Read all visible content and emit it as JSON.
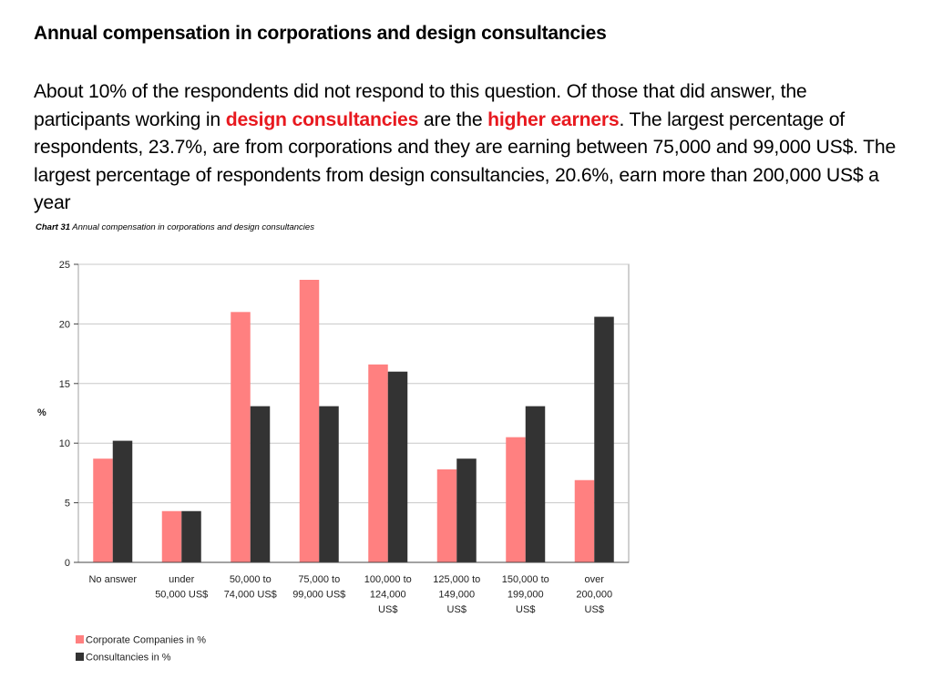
{
  "slide": {
    "title": "Annual compensation in corporations and design consultancies",
    "paragraph": {
      "part1": "About 10% of the respondents did not respond to this question. Of those that did answer, the participants working in ",
      "highlight1": "design consultancies",
      "part2": " are the ",
      "highlight2": "higher earners",
      "part3": ". The largest percentage of respondents, 23.7%, are from corporations and they are earning between 75,000 and 99,000 US$. The largest percentage of respondents from design consultancies, 20.6%, earn more than 200,000 US$ a year"
    },
    "highlight_color": "#e8191f"
  },
  "chart_caption": {
    "label": "Chart 31",
    "text": " Annual compensation in corporations and design consultancies"
  },
  "chart_data": {
    "type": "bar",
    "ylabel": "%",
    "ylim": [
      0,
      25
    ],
    "yticks": [
      0,
      5,
      10,
      15,
      20,
      25
    ],
    "grid": true,
    "legend_position": "bottom-left",
    "categories": [
      [
        "No answer"
      ],
      [
        "under",
        "50,000 US$"
      ],
      [
        "50,000 to",
        "74,000 US$"
      ],
      [
        "75,000 to",
        "99,000 US$"
      ],
      [
        "100,000 to",
        "124,000",
        "US$"
      ],
      [
        "125,000 to",
        "149,000",
        "US$"
      ],
      [
        "150,000 to",
        "199,000",
        "US$"
      ],
      [
        "over",
        "200,000",
        "US$"
      ]
    ],
    "series": [
      {
        "name": "Corporate Companies  in %",
        "color": "#ff8080",
        "values": [
          8.7,
          4.3,
          21.0,
          23.7,
          16.6,
          7.8,
          10.5,
          6.9
        ]
      },
      {
        "name": "Consultancies in %",
        "color": "#333333",
        "values": [
          10.2,
          4.3,
          13.1,
          13.1,
          16.0,
          8.7,
          13.1,
          20.6
        ]
      }
    ]
  }
}
